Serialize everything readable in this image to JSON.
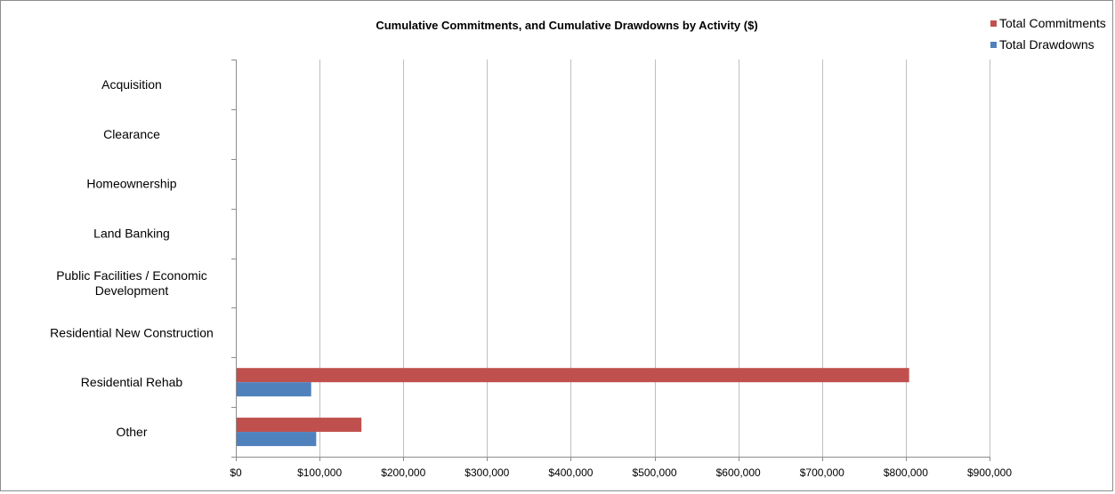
{
  "chart_data": {
    "type": "bar",
    "orientation": "horizontal",
    "title": "Cumulative Commitments, and Cumulative Drawdowns by Activity ($)",
    "categories": [
      "Acquisition",
      "Clearance",
      "Homeownership",
      "Land Banking",
      "Public Facilities / Economic Development",
      "Residential New Construction",
      "Residential Rehab",
      "Other"
    ],
    "series": [
      {
        "name": "Total Commitments",
        "color": "#c0504d",
        "values": [
          0,
          0,
          0,
          0,
          0,
          0,
          804000,
          150000
        ]
      },
      {
        "name": "Total Drawdowns",
        "color": "#4f81bd",
        "values": [
          0,
          0,
          0,
          0,
          0,
          0,
          90000,
          96000
        ]
      }
    ],
    "xlim": [
      0,
      900000
    ],
    "x_ticks": [
      0,
      100000,
      200000,
      300000,
      400000,
      500000,
      600000,
      700000,
      800000,
      900000
    ],
    "x_tick_labels": [
      "$0",
      "$100,000",
      "$200,000",
      "$300,000",
      "$400,000",
      "$500,000",
      "$600,000",
      "$700,000",
      "$800,000",
      "$900,000"
    ],
    "grid": "vertical",
    "legend_position": "top-right"
  }
}
